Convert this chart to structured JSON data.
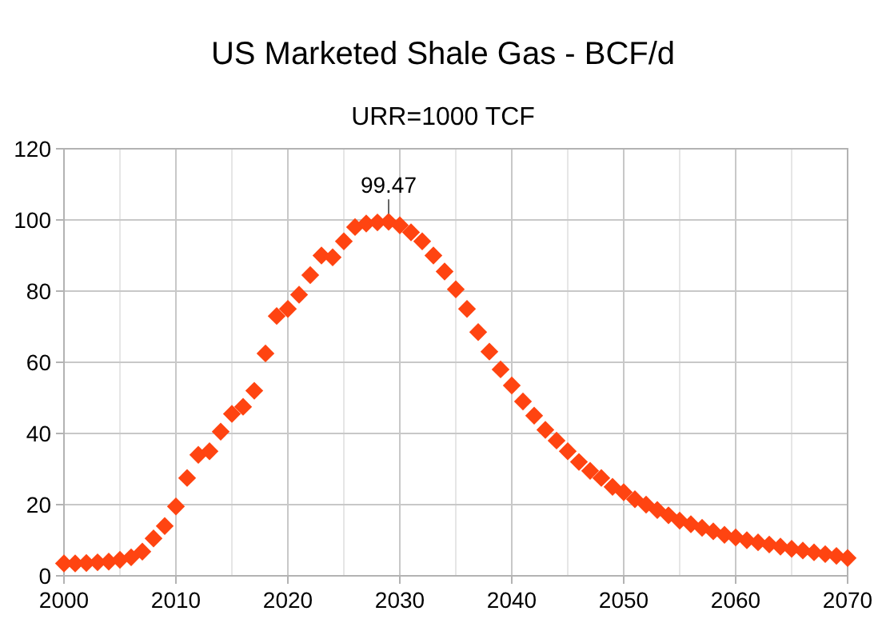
{
  "chart_data": {
    "type": "scatter",
    "title": "US Marketed Shale Gas - BCF/d",
    "subtitle": "URR=1000 TCF",
    "x": [
      2000,
      2001,
      2002,
      2003,
      2004,
      2005,
      2006,
      2007,
      2008,
      2009,
      2010,
      2011,
      2012,
      2013,
      2014,
      2015,
      2016,
      2017,
      2018,
      2019,
      2020,
      2021,
      2022,
      2023,
      2024,
      2025,
      2026,
      2027,
      2028,
      2029,
      2030,
      2031,
      2032,
      2033,
      2034,
      2035,
      2036,
      2037,
      2038,
      2039,
      2040,
      2041,
      2042,
      2043,
      2044,
      2045,
      2046,
      2047,
      2048,
      2049,
      2050,
      2051,
      2052,
      2053,
      2054,
      2055,
      2056,
      2057,
      2058,
      2059,
      2060,
      2061,
      2062,
      2063,
      2064,
      2065,
      2066,
      2067,
      2068,
      2069,
      2070
    ],
    "series": [
      {
        "color": "#ff4411",
        "values": [
          3.5,
          3.5,
          3.6,
          3.8,
          4,
          4.5,
          5.2,
          6.8,
          10.5,
          14,
          19.5,
          27.5,
          34,
          35,
          40.5,
          45.5,
          47.5,
          52,
          62.5,
          73,
          75,
          79,
          84.5,
          90,
          89.5,
          94,
          98,
          99,
          99.3,
          99.47,
          98.5,
          96.5,
          94,
          90,
          85.5,
          80.5,
          75,
          68.5,
          63,
          58,
          53.5,
          49,
          45,
          41,
          38,
          35,
          32,
          29.5,
          27.5,
          25,
          23.5,
          21.5,
          20,
          18.5,
          17,
          15.5,
          14.5,
          13.5,
          12.5,
          11.5,
          10.8,
          10,
          9.4,
          8.8,
          8.2,
          7.6,
          7.1,
          6.6,
          6.1,
          5.6,
          5
        ]
      }
    ],
    "annotations": [
      {
        "text": "99.47",
        "x": 2029,
        "y": 99.47
      }
    ],
    "xlim": [
      2000,
      2070
    ],
    "xticks": [
      2000,
      {
        "value": 2005,
        "label": null
      },
      2010,
      {
        "value": 2015,
        "label": null
      },
      2020,
      {
        "value": 2025,
        "label": null
      },
      2030,
      {
        "value": 2035,
        "label": null
      },
      2040,
      {
        "value": 2045,
        "label": null
      },
      2050,
      {
        "value": 2055,
        "label": null
      },
      2060,
      {
        "value": 2065,
        "label": null
      },
      2070
    ],
    "ylim": [
      0,
      120
    ],
    "yticks": [
      0,
      20,
      40,
      60,
      80,
      100,
      120
    ],
    "grid": true,
    "marker": "diamond"
  }
}
